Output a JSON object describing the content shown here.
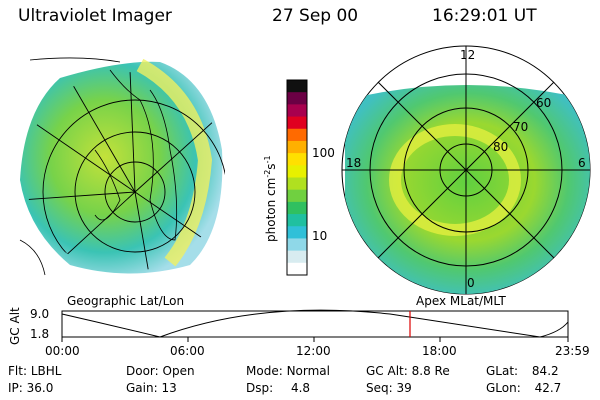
{
  "header": {
    "instrument": "Ultraviolet Imager",
    "date": "27 Sep 00",
    "time": "16:29:01 UT"
  },
  "colorbar": {
    "unit": "photon cm",
    "unit_exp1": "-2",
    "unit_s": "s",
    "unit_exp2": "-1",
    "ticks": [
      "100",
      "10"
    ],
    "colors": [
      "#101010",
      "#6b0044",
      "#a8004e",
      "#e00020",
      "#ff6a00",
      "#ffb000",
      "#ffe000",
      "#e8f000",
      "#b0e020",
      "#70d040",
      "#30c060",
      "#20c0a0",
      "#30c0d8",
      "#8fd8e8",
      "#d8ecf0",
      "#ffffff"
    ]
  },
  "left_map": {
    "caption": "Geographic Lat/Lon"
  },
  "right_map": {
    "caption": "Apex MLat/MLT",
    "mlt_labels": [
      "12",
      "18",
      "6",
      "0"
    ],
    "mlat_labels": [
      "60",
      "70",
      "80"
    ]
  },
  "altitude_plot": {
    "axis_label": "GC Alt",
    "y_max": "9.0",
    "y_min": "1.8",
    "x_ticks": [
      "00:00",
      "06:00",
      "12:00",
      "18:00",
      "23:59"
    ],
    "marker_color": "#dd0000"
  },
  "status": {
    "flt_label": "Flt:",
    "flt_value": "LBHL",
    "ip_label": "IP:",
    "ip_value": "36.0",
    "door_label": "Door:",
    "door_value": "Open",
    "gain_label": "Gain:",
    "gain_value": "13",
    "mode_label": "Mode:",
    "mode_value": "Normal",
    "dsp_label": "Dsp:",
    "dsp_value": "4.8",
    "gcalt_label": "GC Alt:",
    "gcalt_value": "8.8 Re",
    "seq_label": "Seq:",
    "seq_value": "39",
    "glat_label": "GLat:",
    "glat_value": "84.2",
    "glon_label": "GLon:",
    "glon_value": "42.7"
  }
}
